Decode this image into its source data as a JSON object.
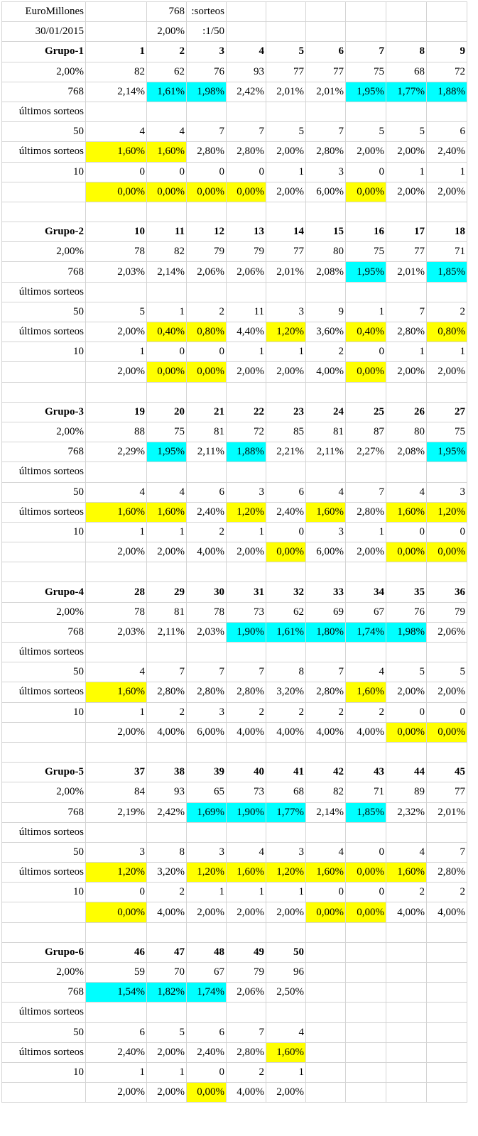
{
  "header": {
    "title": "EuroMillones",
    "date": "30/01/2015",
    "draws": "768",
    "draws_label": ":sorteos",
    "pct": "2,00%",
    "ratio_label": ":1/50"
  },
  "labels": {
    "recent": "últimos sorteos"
  },
  "colors": {
    "title_red": "#e60000",
    "highlight_yellow": "#ffff00",
    "highlight_cyan": "#00ffff"
  },
  "groups": [
    {
      "name": "Grupo-1",
      "balls": [
        "1",
        "2",
        "3",
        "4",
        "5",
        "6",
        "7",
        "8",
        "9"
      ],
      "pct_label": "2,00%",
      "counts": [
        "82",
        "62",
        "76",
        "93",
        "77",
        "77",
        "75",
        "68",
        "72"
      ],
      "total_label": "768",
      "pcts": [
        "2,14%",
        "1,61%",
        "1,98%",
        "2,42%",
        "2,01%",
        "2,01%",
        "1,95%",
        "1,77%",
        "1,88%"
      ],
      "pcts_hl": [
        "",
        "c",
        "c",
        "",
        "",
        "",
        "c",
        "c",
        "c"
      ],
      "pcts_size": "small",
      "n50_label": "50",
      "n50": [
        "4",
        "4",
        "7",
        "7",
        "5",
        "7",
        "5",
        "5",
        "6"
      ],
      "p50": [
        "1,60%",
        "1,60%",
        "2,80%",
        "2,80%",
        "2,00%",
        "2,80%",
        "2,00%",
        "2,00%",
        "2,40%"
      ],
      "p50_hl": [
        "y",
        "y",
        "",
        "",
        "",
        "",
        "",
        "",
        ""
      ],
      "n10_label": "10",
      "n10": [
        "0",
        "0",
        "0",
        "0",
        "1",
        "3",
        "0",
        "1",
        "1"
      ],
      "p10": [
        "0,00%",
        "0,00%",
        "0,00%",
        "0,00%",
        "2,00%",
        "6,00%",
        "0,00%",
        "2,00%",
        "2,00%"
      ],
      "p10_hl": [
        "y",
        "y",
        "y",
        "y",
        "",
        "",
        "y",
        "",
        ""
      ]
    },
    {
      "name": "Grupo-2",
      "balls": [
        "10",
        "11",
        "12",
        "13",
        "14",
        "15",
        "16",
        "17",
        "18"
      ],
      "pct_label": "2,00%",
      "counts": [
        "78",
        "82",
        "79",
        "79",
        "77",
        "80",
        "75",
        "77",
        "71"
      ],
      "total_label": "768",
      "pcts": [
        "2,03%",
        "2,14%",
        "2,06%",
        "2,06%",
        "2,01%",
        "2,08%",
        "1,95%",
        "2,01%",
        "1,85%"
      ],
      "pcts_hl": [
        "",
        "",
        "",
        "",
        "",
        "",
        "c",
        "",
        "c"
      ],
      "pcts_size": "tiny",
      "n50_label": "50",
      "n50": [
        "5",
        "1",
        "2",
        "11",
        "3",
        "9",
        "1",
        "7",
        "2"
      ],
      "p50": [
        "2,00%",
        "0,40%",
        "0,80%",
        "4,40%",
        "1,20%",
        "3,60%",
        "0,40%",
        "2,80%",
        "0,80%"
      ],
      "p50_hl": [
        "",
        "y",
        "y",
        "",
        "y",
        "",
        "y",
        "",
        "y"
      ],
      "n10_label": "10",
      "n10": [
        "1",
        "0",
        "0",
        "1",
        "1",
        "2",
        "0",
        "1",
        "1"
      ],
      "p10": [
        "2,00%",
        "0,00%",
        "0,00%",
        "2,00%",
        "2,00%",
        "4,00%",
        "0,00%",
        "2,00%",
        "2,00%"
      ],
      "p10_hl": [
        "",
        "y",
        "y",
        "",
        "",
        "",
        "y",
        "",
        ""
      ]
    },
    {
      "name": "Grupo-3",
      "balls": [
        "19",
        "20",
        "21",
        "22",
        "23",
        "24",
        "25",
        "26",
        "27"
      ],
      "pct_label": "2,00%",
      "counts": [
        "88",
        "75",
        "81",
        "72",
        "85",
        "81",
        "87",
        "80",
        "75"
      ],
      "total_label": "768",
      "pcts": [
        "2,29%",
        "1,95%",
        "2,11%",
        "1,88%",
        "2,21%",
        "2,11%",
        "2,27%",
        "2,08%",
        "1,95%"
      ],
      "pcts_hl": [
        "",
        "c",
        "",
        "c",
        "",
        "",
        "",
        "",
        "c"
      ],
      "pcts_size": "small",
      "n50_label": "50",
      "n50": [
        "4",
        "4",
        "6",
        "3",
        "6",
        "4",
        "7",
        "4",
        "3"
      ],
      "p50": [
        "1,60%",
        "1,60%",
        "2,40%",
        "1,20%",
        "2,40%",
        "1,60%",
        "2,80%",
        "1,60%",
        "1,20%"
      ],
      "p50_hl": [
        "y",
        "y",
        "",
        "y",
        "",
        "y",
        "",
        "y",
        "y"
      ],
      "n10_label": "10",
      "n10": [
        "1",
        "1",
        "2",
        "1",
        "0",
        "3",
        "1",
        "0",
        "0"
      ],
      "p10": [
        "2,00%",
        "2,00%",
        "4,00%",
        "2,00%",
        "0,00%",
        "6,00%",
        "2,00%",
        "0,00%",
        "0,00%"
      ],
      "p10_hl": [
        "",
        "",
        "",
        "",
        "y",
        "",
        "",
        "y",
        "y"
      ]
    },
    {
      "name": "Grupo-4",
      "balls": [
        "28",
        "29",
        "30",
        "31",
        "32",
        "33",
        "34",
        "35",
        "36"
      ],
      "pct_label": "2,00%",
      "counts": [
        "78",
        "81",
        "78",
        "73",
        "62",
        "69",
        "67",
        "76",
        "79"
      ],
      "total_label": "768",
      "pcts": [
        "2,03%",
        "2,11%",
        "2,03%",
        "1,90%",
        "1,61%",
        "1,80%",
        "1,74%",
        "1,98%",
        "2,06%"
      ],
      "pcts_hl": [
        "",
        "",
        "",
        "c",
        "c",
        "c",
        "c",
        "c",
        ""
      ],
      "pcts_size": "small",
      "n50_label": "50",
      "n50": [
        "4",
        "7",
        "7",
        "7",
        "8",
        "7",
        "4",
        "5",
        "5"
      ],
      "p50": [
        "1,60%",
        "2,80%",
        "2,80%",
        "2,80%",
        "3,20%",
        "2,80%",
        "1,60%",
        "2,00%",
        "2,00%"
      ],
      "p50_hl": [
        "y",
        "",
        "",
        "",
        "",
        "",
        "y",
        "",
        ""
      ],
      "n10_label": "10",
      "n10": [
        "1",
        "2",
        "3",
        "2",
        "2",
        "2",
        "2",
        "0",
        "0"
      ],
      "p10": [
        "2,00%",
        "4,00%",
        "6,00%",
        "4,00%",
        "4,00%",
        "4,00%",
        "4,00%",
        "0,00%",
        "0,00%"
      ],
      "p10_hl": [
        "",
        "",
        "",
        "",
        "",
        "",
        "",
        "y",
        "y"
      ]
    },
    {
      "name": "Grupo-5",
      "balls": [
        "37",
        "38",
        "39",
        "40",
        "41",
        "42",
        "43",
        "44",
        "45"
      ],
      "pct_label": "2,00%",
      "counts": [
        "84",
        "93",
        "65",
        "73",
        "68",
        "82",
        "71",
        "89",
        "77"
      ],
      "total_label": "768",
      "pcts": [
        "2,19%",
        "2,42%",
        "1,69%",
        "1,90%",
        "1,77%",
        "2,14%",
        "1,85%",
        "2,32%",
        "2,01%"
      ],
      "pcts_hl": [
        "",
        "",
        "c",
        "c",
        "c",
        "",
        "c",
        "",
        ""
      ],
      "pcts_size": "small",
      "n50_label": "50",
      "n50": [
        "3",
        "8",
        "3",
        "4",
        "3",
        "4",
        "0",
        "4",
        "7"
      ],
      "p50": [
        "1,20%",
        "3,20%",
        "1,20%",
        "1,60%",
        "1,20%",
        "1,60%",
        "0,00%",
        "1,60%",
        "2,80%"
      ],
      "p50_hl": [
        "y",
        "",
        "y",
        "y",
        "y",
        "y",
        "y",
        "y",
        ""
      ],
      "n10_label": "10",
      "n10": [
        "0",
        "2",
        "1",
        "1",
        "1",
        "0",
        "0",
        "2",
        "2"
      ],
      "p10": [
        "0,00%",
        "4,00%",
        "2,00%",
        "2,00%",
        "2,00%",
        "0,00%",
        "0,00%",
        "4,00%",
        "4,00%"
      ],
      "p10_hl": [
        "y",
        "",
        "",
        "",
        "",
        "y",
        "y",
        "",
        ""
      ]
    },
    {
      "name": "Grupo-6",
      "balls": [
        "46",
        "47",
        "48",
        "49",
        "50",
        "",
        "",
        "",
        ""
      ],
      "pct_label": "2,00%",
      "counts": [
        "59",
        "70",
        "67",
        "79",
        "96",
        "",
        "",
        "",
        ""
      ],
      "total_label": "768",
      "pcts": [
        "1,54%",
        "1,82%",
        "1,74%",
        "2,06%",
        "2,50%",
        "",
        "",
        "",
        ""
      ],
      "pcts_hl": [
        "c",
        "c",
        "c",
        "",
        "",
        "",
        "",
        "",
        ""
      ],
      "pcts_size": "small",
      "n50_label": "50",
      "n50": [
        "6",
        "5",
        "6",
        "7",
        "4",
        "",
        "",
        "",
        ""
      ],
      "p50": [
        "2,40%",
        "2,00%",
        "2,40%",
        "2,80%",
        "1,60%",
        "",
        "",
        "",
        ""
      ],
      "p50_hl": [
        "",
        "",
        "",
        "",
        "y",
        "",
        "",
        "",
        ""
      ],
      "n10_label": "10",
      "n10": [
        "1",
        "1",
        "0",
        "2",
        "1",
        "",
        "",
        "",
        ""
      ],
      "p10": [
        "2,00%",
        "2,00%",
        "0,00%",
        "4,00%",
        "2,00%",
        "",
        "",
        "",
        ""
      ],
      "p10_hl": [
        "",
        "",
        "y",
        "",
        "",
        "",
        "",
        "",
        ""
      ]
    }
  ]
}
